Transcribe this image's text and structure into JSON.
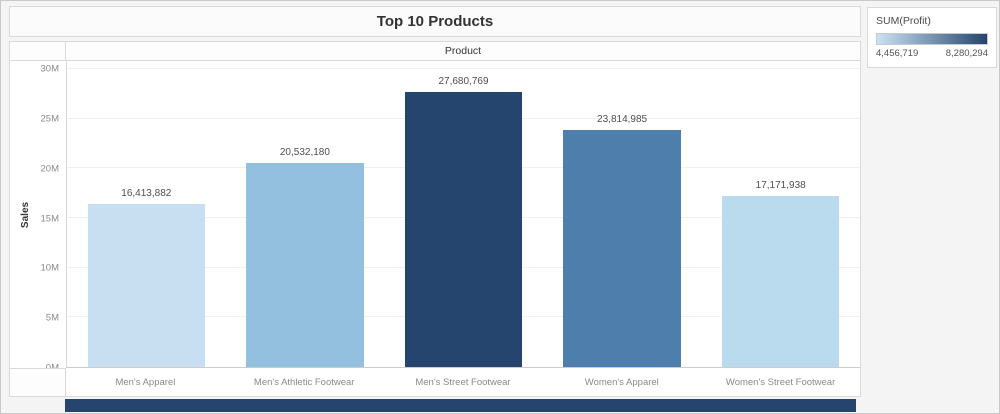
{
  "title": "Top 10 Products",
  "column_header": "Product",
  "y_axis_label": "Sales",
  "legend": {
    "title": "SUM(Profit)",
    "min_label": "4,456,719",
    "max_label": "8,280,294",
    "gradient_start": "#c9e2f5",
    "gradient_end": "#26456e"
  },
  "colors": {
    "bottom_strip": "#26456e"
  },
  "chart_data": {
    "type": "bar",
    "title": "Top 10 Products",
    "xlabel": "Product",
    "ylabel": "Sales",
    "ylim": [
      0,
      30000000
    ],
    "y_ticks": [
      "0M",
      "5M",
      "10M",
      "15M",
      "20M",
      "25M",
      "30M"
    ],
    "grid": true,
    "legend_position": "right",
    "legend_title": "SUM(Profit)",
    "color_by": "SUM(Profit)",
    "color_range": [
      4456719,
      8280294
    ],
    "categories": [
      "Men's Apparel",
      "Men's Athletic Footwear",
      "Men's Street Footwear",
      "Women's Apparel",
      "Women's Street Footwear"
    ],
    "values": [
      16413882,
      20532180,
      27680769,
      23814985,
      17171938
    ],
    "value_labels": [
      "16,413,882",
      "20,532,180",
      "27,680,769",
      "23,814,985",
      "17,171,938"
    ],
    "bar_colors": [
      "#c7dff0",
      "#92c0de",
      "#26456e",
      "#4e7eab",
      "#badaee"
    ]
  }
}
